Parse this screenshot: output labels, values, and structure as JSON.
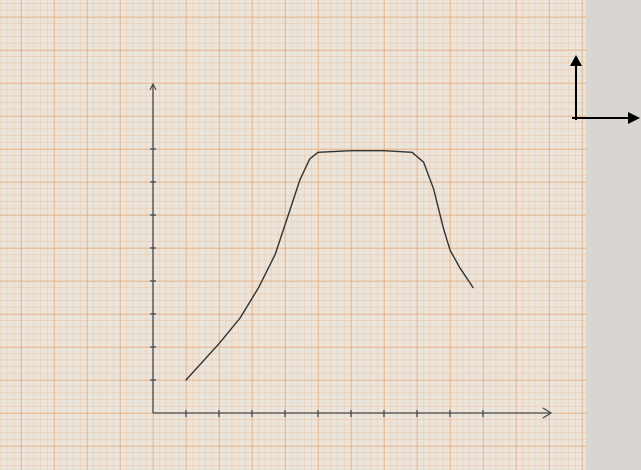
{
  "chart_data": {
    "type": "line",
    "x": [
      1,
      2,
      2.64,
      3.2,
      3.7,
      4.1,
      4.45,
      4.75,
      5,
      6,
      7,
      7.85,
      8.2,
      8.5,
      8.8,
      9,
      9.3,
      9.7
    ],
    "series": [
      {
        "color": "#333333",
        "values": [
          1,
          2.1,
          2.88,
          3.8,
          4.8,
          6,
          7.06,
          7.7,
          7.9,
          7.95,
          7.95,
          7.9,
          7.6,
          6.8,
          5.6,
          4.94,
          4.4,
          3.8
        ]
      }
    ],
    "xlim": [
      0,
      12
    ],
    "ylim": [
      0,
      10
    ],
    "xticks": [
      1,
      2,
      3,
      4,
      5,
      6,
      7,
      8,
      9,
      10
    ],
    "yticks": [
      1,
      2,
      3,
      4,
      5,
      6,
      7,
      8
    ]
  }
}
